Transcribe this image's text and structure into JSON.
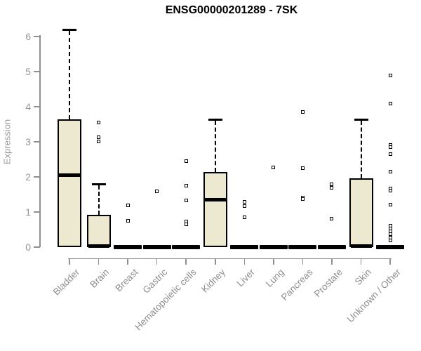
{
  "chart_data": {
    "type": "boxplot",
    "title": "ENSG00000201289 - 7SK",
    "ylabel": "Expression",
    "xlabel": "",
    "ylim": [
      0,
      6.4
    ],
    "yticks": [
      0,
      1,
      2,
      3,
      4,
      5,
      6
    ],
    "grid": false,
    "legend": "none",
    "categories": [
      "Bladder",
      "Brain",
      "Breast",
      "Gastric",
      "Hematopoietic cells",
      "Kidney",
      "Liver",
      "Lung",
      "Pancreas",
      "Prostate",
      "Skin",
      "Unknown / Other"
    ],
    "boxes": [
      {
        "category": "Bladder",
        "whisker_low": 0,
        "q1": 0.02,
        "median": 2.05,
        "q3": 3.63,
        "whisker_high": 6.2,
        "outliers": []
      },
      {
        "category": "Brain",
        "whisker_low": 0,
        "q1": 0.02,
        "median": 0.04,
        "q3": 0.9,
        "whisker_high": 1.8,
        "outliers": [
          3.55,
          3.14,
          3.01
        ]
      },
      {
        "category": "Breast",
        "whisker_low": 0,
        "q1": 0,
        "median": 0.02,
        "q3": 0.04,
        "whisker_high": 0.04,
        "outliers": [
          1.2,
          0.75
        ]
      },
      {
        "category": "Gastric",
        "whisker_low": 0,
        "q1": 0,
        "median": 0.02,
        "q3": 0.04,
        "whisker_high": 0.04,
        "outliers": [
          1.6
        ]
      },
      {
        "category": "Hematopoietic cells",
        "whisker_low": 0,
        "q1": 0,
        "median": 0.02,
        "q3": 0.04,
        "whisker_high": 0.04,
        "outliers": [
          2.45,
          1.76,
          1.34,
          0.73,
          0.65
        ]
      },
      {
        "category": "Kidney",
        "whisker_low": 0,
        "q1": 0.02,
        "median": 1.35,
        "q3": 2.12,
        "whisker_high": 3.64,
        "outliers": []
      },
      {
        "category": "Liver",
        "whisker_low": 0,
        "q1": 0,
        "median": 0.02,
        "q3": 0.04,
        "whisker_high": 0.04,
        "outliers": [
          1.29,
          1.18,
          0.86
        ]
      },
      {
        "category": "Lung",
        "whisker_low": 0,
        "q1": 0,
        "median": 0.02,
        "q3": 0.04,
        "whisker_high": 0.04,
        "outliers": [
          2.27
        ]
      },
      {
        "category": "Pancreas",
        "whisker_low": 0,
        "q1": 0,
        "median": 0.02,
        "q3": 0.04,
        "whisker_high": 0.04,
        "outliers": [
          3.85,
          2.25,
          1.42,
          1.38
        ]
      },
      {
        "category": "Prostate",
        "whisker_low": 0,
        "q1": 0,
        "median": 0.02,
        "q3": 0.04,
        "whisker_high": 0.04,
        "outliers": [
          1.79,
          1.69,
          0.81
        ]
      },
      {
        "category": "Skin",
        "whisker_low": 0,
        "q1": 0.02,
        "median": 0.04,
        "q3": 1.95,
        "whisker_high": 3.64,
        "outliers": []
      },
      {
        "category": "Unknown / Other",
        "whisker_low": 0,
        "q1": 0,
        "median": 0.02,
        "q3": 0.04,
        "whisker_high": 0.04,
        "outliers": [
          4.9,
          4.1,
          2.92,
          2.86,
          2.65,
          2.16,
          1.68,
          1.62,
          1.22,
          0.62,
          0.53,
          0.45,
          0.37,
          0.28,
          0.2
        ]
      }
    ],
    "colors": {
      "box_fill": "#EDE8D0",
      "box_border": "#000000",
      "axis": "#8F8F8F",
      "tick_label": "#969696",
      "title": "#000000",
      "background": "#FFFFFF"
    }
  }
}
